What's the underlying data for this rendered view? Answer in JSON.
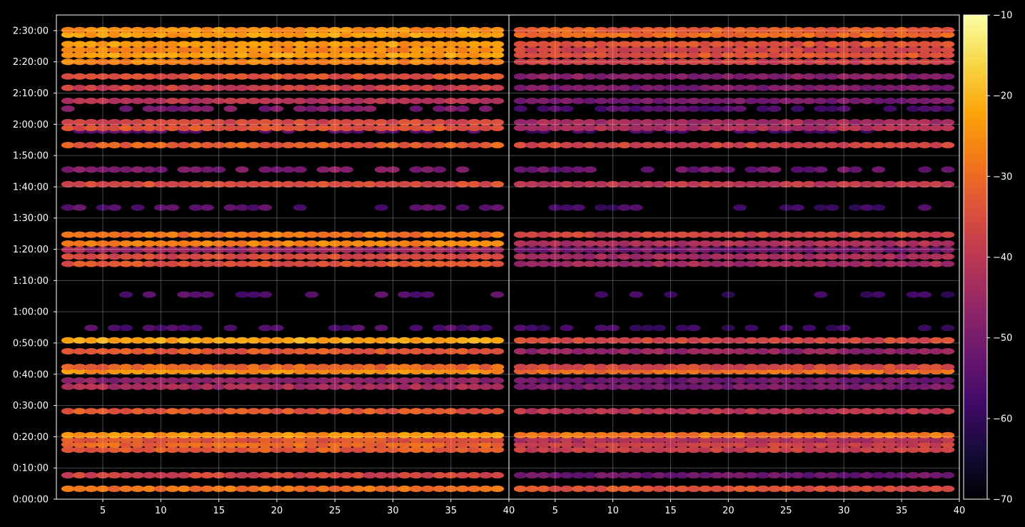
{
  "chart_data": {
    "type": "heatmap",
    "layout": "two-panel",
    "background": "#000000",
    "colormap": "inferno",
    "x_range": [
      1,
      40
    ],
    "x_ticks": [
      "5",
      "10",
      "15",
      "20",
      "25",
      "30",
      "35",
      "40"
    ],
    "y_range_seconds": [
      0,
      9300
    ],
    "y_tick_seconds": [
      0,
      600,
      1200,
      1800,
      2400,
      3000,
      3600,
      4200,
      4800,
      5400,
      6000,
      6600,
      7200,
      7800,
      8400,
      9000
    ],
    "y_ticks": [
      "0:00:00",
      "0:10:00",
      "0:20:00",
      "0:30:00",
      "0:40:00",
      "0:50:00",
      "1:00:00",
      "1:10:00",
      "1:20:00",
      "1:30:00",
      "1:40:00",
      "1:50:00",
      "2:00:00",
      "2:10:00",
      "2:20:00",
      "2:30:00"
    ],
    "grid": true,
    "colorbar": {
      "range": [
        -70,
        -10
      ],
      "ticks": [
        "−70",
        "−60",
        "−50",
        "−40",
        "−30",
        "−20",
        "−10"
      ],
      "tick_values": [
        -70,
        -60,
        -50,
        -40,
        -30,
        -20,
        -10
      ]
    },
    "bands": [
      {
        "t": 200,
        "left": -29,
        "right": -34,
        "density": 1.0
      },
      {
        "t": 460,
        "left": -37,
        "right": -52,
        "density": 1.0
      },
      {
        "t": 950,
        "left": -33,
        "right": -38,
        "density": 1.0
      },
      {
        "t": 1050,
        "left": -31,
        "right": -38,
        "density": 1.0
      },
      {
        "t": 1140,
        "left": -34,
        "right": -42,
        "density": 1.0
      },
      {
        "t": 1230,
        "left": -24,
        "right": -28,
        "density": 1.0
      },
      {
        "t": 1690,
        "left": -33,
        "right": -40,
        "density": 1.0
      },
      {
        "t": 2160,
        "left": -43,
        "right": -50,
        "density": 1.0
      },
      {
        "t": 2280,
        "left": -47,
        "right": -52,
        "density": 1.0
      },
      {
        "t": 2460,
        "left": -25,
        "right": -30,
        "density": 1.0
      },
      {
        "t": 2540,
        "left": -31,
        "right": -36,
        "density": 1.0
      },
      {
        "t": 2840,
        "left": -33,
        "right": -46,
        "density": 1.0
      },
      {
        "t": 3050,
        "left": -22,
        "right": -36,
        "density": 1.0
      },
      {
        "t": 3290,
        "left": -56,
        "right": -58,
        "density": 0.4
      },
      {
        "t": 3930,
        "left": -55,
        "right": -58,
        "density": 0.4
      },
      {
        "t": 4520,
        "left": -34,
        "right": -44,
        "density": 1.0
      },
      {
        "t": 4660,
        "left": -36,
        "right": -44,
        "density": 1.0
      },
      {
        "t": 4790,
        "left": -44,
        "right": -50,
        "density": 1.0
      },
      {
        "t": 4910,
        "left": -27,
        "right": -42,
        "density": 1.0
      },
      {
        "t": 5080,
        "left": -29,
        "right": -37,
        "density": 1.0
      },
      {
        "t": 5600,
        "left": -55,
        "right": -58,
        "density": 0.4
      },
      {
        "t": 6050,
        "left": -35,
        "right": -40,
        "density": 1.0
      },
      {
        "t": 6330,
        "left": -49,
        "right": -52,
        "density": 0.7
      },
      {
        "t": 6800,
        "left": -32,
        "right": -37,
        "density": 1.0
      },
      {
        "t": 7080,
        "left": -54,
        "right": -58,
        "density": 0.5
      },
      {
        "t": 7130,
        "left": -34,
        "right": -42,
        "density": 1.0
      },
      {
        "t": 7240,
        "left": -36,
        "right": -44,
        "density": 1.0
      },
      {
        "t": 7500,
        "left": -50,
        "right": -56,
        "density": 0.6
      },
      {
        "t": 7650,
        "left": -41,
        "right": -50,
        "density": 1.0
      },
      {
        "t": 7900,
        "left": -38,
        "right": -50,
        "density": 1.0
      },
      {
        "t": 8120,
        "left": -34,
        "right": -48,
        "density": 1.0
      },
      {
        "t": 8400,
        "left": -27,
        "right": -38,
        "density": 1.0
      },
      {
        "t": 8530,
        "left": -23,
        "right": -34,
        "density": 1.0
      },
      {
        "t": 8630,
        "left": -26,
        "right": -37,
        "density": 1.0
      },
      {
        "t": 8740,
        "left": -24,
        "right": -34,
        "density": 1.0
      },
      {
        "t": 8920,
        "left": -23,
        "right": -30,
        "density": 1.0
      },
      {
        "t": 9010,
        "left": -25,
        "right": -32,
        "density": 1.0
      }
    ]
  }
}
